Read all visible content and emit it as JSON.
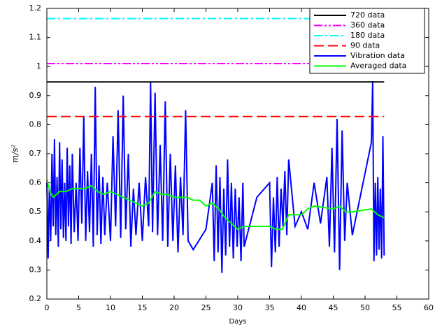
{
  "chart_data": {
    "type": "line",
    "xlabel": "Days",
    "ylabel": "m/s²",
    "xlim": [
      0,
      60
    ],
    "xticks": [
      0,
      5,
      10,
      15,
      20,
      25,
      30,
      35,
      40,
      45,
      50,
      55,
      60
    ],
    "ylim": [
      0.2,
      1.2
    ],
    "yticks": [
      0.2,
      0.3,
      0.4,
      0.5,
      0.6,
      0.7,
      0.8,
      0.9,
      1,
      1.1,
      1.2
    ],
    "legend": "upper right",
    "series": [
      {
        "name": "720 data",
        "color": "#000000",
        "dash": "solid",
        "x": [
          0,
          53
        ],
        "values": [
          0.947,
          0.947
        ]
      },
      {
        "name": "360 data",
        "color": "#ff00ff",
        "dash": "dashdotdot",
        "x": [
          0,
          53
        ],
        "values": [
          1.01,
          1.01
        ]
      },
      {
        "name": "180 data",
        "color": "#00ffff",
        "dash": "dashdot",
        "x": [
          0,
          53
        ],
        "values": [
          1.165,
          1.165
        ]
      },
      {
        "name": "90 data",
        "color": "#ff0000",
        "dash": "dashed",
        "x": [
          0,
          53
        ],
        "values": [
          0.828,
          0.828
        ]
      },
      {
        "name": "Vibration data",
        "color": "#0000ff",
        "dash": "solid",
        "x": [
          0,
          0.2,
          0.4,
          0.6,
          0.8,
          1,
          1.2,
          1.4,
          1.6,
          1.8,
          2,
          2.2,
          2.4,
          2.6,
          2.8,
          3,
          3.2,
          3.4,
          3.6,
          3.8,
          4,
          4.3,
          4.6,
          4.9,
          5.2,
          5.5,
          5.8,
          6.1,
          6.4,
          6.7,
          7,
          7.3,
          7.6,
          7.9,
          8.2,
          8.5,
          8.8,
          9.1,
          9.5,
          10,
          10.4,
          10.8,
          11.2,
          11.6,
          12,
          12.4,
          12.8,
          13.2,
          13.6,
          14,
          14.5,
          15,
          15.5,
          16,
          16.3,
          16.6,
          17,
          17.4,
          17.8,
          18.2,
          18.6,
          19,
          19.4,
          19.8,
          20.2,
          20.6,
          21,
          21.4,
          21.8,
          22.2,
          23,
          25,
          26,
          26.3,
          26.6,
          26.9,
          27.2,
          27.5,
          27.8,
          28.1,
          28.4,
          28.7,
          29,
          29.3,
          29.6,
          29.9,
          30.2,
          30.5,
          30.8,
          31,
          33,
          35,
          35.3,
          35.6,
          35.9,
          36.2,
          36.5,
          36.8,
          37.1,
          37.4,
          37.7,
          38,
          39,
          40,
          41,
          42,
          43,
          44,
          44.4,
          44.8,
          45.2,
          45.6,
          46,
          46.4,
          46.8,
          47.2,
          48,
          51,
          51.2,
          51.4,
          51.6,
          51.8,
          52,
          52.2,
          52.4,
          52.6,
          52.8,
          53
        ],
        "values": [
          0.6,
          0.34,
          0.58,
          0.4,
          0.7,
          0.45,
          0.75,
          0.42,
          0.62,
          0.38,
          0.74,
          0.44,
          0.68,
          0.41,
          0.6,
          0.4,
          0.72,
          0.45,
          0.66,
          0.39,
          0.7,
          0.43,
          0.6,
          0.4,
          0.72,
          0.46,
          0.83,
          0.4,
          0.64,
          0.43,
          0.7,
          0.38,
          0.93,
          0.42,
          0.66,
          0.39,
          0.62,
          0.42,
          0.6,
          0.4,
          0.76,
          0.45,
          0.85,
          0.41,
          0.9,
          0.44,
          0.7,
          0.38,
          0.58,
          0.42,
          0.6,
          0.4,
          0.62,
          0.45,
          0.945,
          0.43,
          0.91,
          0.42,
          0.73,
          0.4,
          0.88,
          0.38,
          0.7,
          0.4,
          0.66,
          0.36,
          0.62,
          0.42,
          0.85,
          0.4,
          0.37,
          0.44,
          0.6,
          0.33,
          0.66,
          0.36,
          0.62,
          0.29,
          0.58,
          0.35,
          0.68,
          0.38,
          0.6,
          0.34,
          0.58,
          0.38,
          0.55,
          0.33,
          0.6,
          0.38,
          0.55,
          0.6,
          0.31,
          0.55,
          0.36,
          0.62,
          0.38,
          0.58,
          0.45,
          0.64,
          0.42,
          0.68,
          0.45,
          0.5,
          0.44,
          0.6,
          0.46,
          0.62,
          0.38,
          0.72,
          0.36,
          0.82,
          0.3,
          0.78,
          0.4,
          0.6,
          0.42,
          0.74,
          0.95,
          0.33,
          0.6,
          0.35,
          0.62,
          0.37,
          0.58,
          0.34,
          0.76,
          0.35
        ]
      },
      {
        "name": "Averaged data",
        "color": "#00ff00",
        "dash": "solid",
        "x": [
          0,
          0.5,
          1,
          2,
          3,
          4,
          5,
          6,
          7,
          8,
          9,
          10,
          12,
          14,
          15,
          16,
          17,
          18,
          19,
          20,
          22,
          23,
          24,
          25,
          26,
          27,
          28,
          29,
          30,
          31,
          35,
          36,
          37,
          38,
          40,
          41,
          42,
          45,
          46,
          47,
          48,
          51,
          52,
          53
        ],
        "values": [
          0.61,
          0.57,
          0.55,
          0.57,
          0.57,
          0.58,
          0.58,
          0.58,
          0.59,
          0.57,
          0.56,
          0.57,
          0.55,
          0.53,
          0.52,
          0.53,
          0.57,
          0.56,
          0.56,
          0.55,
          0.55,
          0.54,
          0.54,
          0.52,
          0.53,
          0.51,
          0.48,
          0.46,
          0.44,
          0.45,
          0.45,
          0.44,
          0.44,
          0.49,
          0.49,
          0.51,
          0.52,
          0.51,
          0.52,
          0.5,
          0.5,
          0.51,
          0.49,
          0.48
        ]
      }
    ]
  }
}
